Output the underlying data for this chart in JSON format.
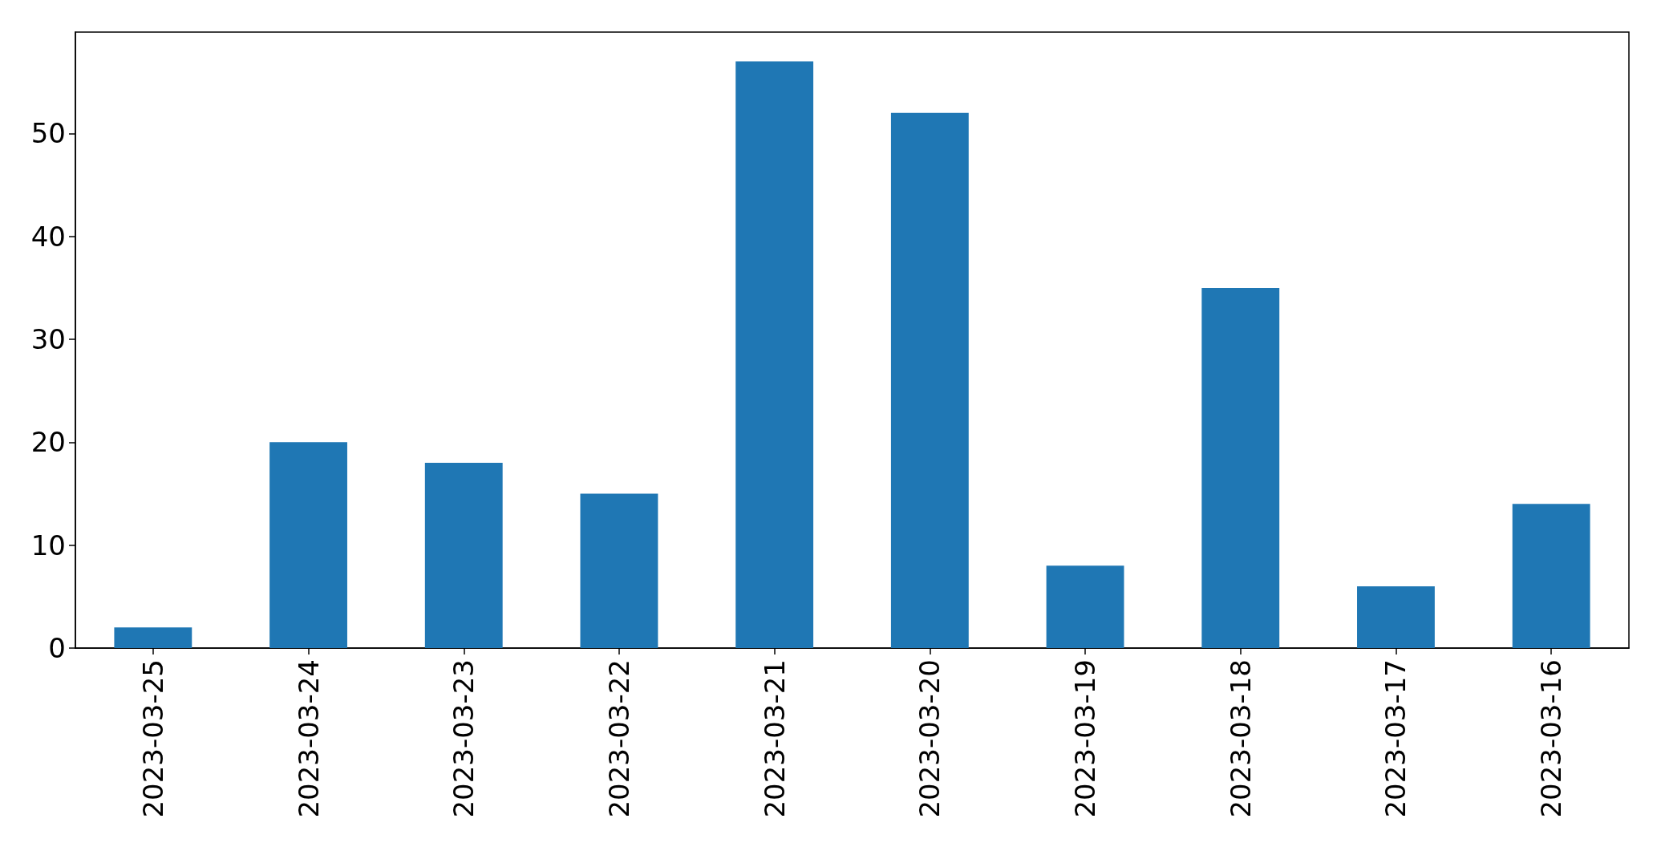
{
  "chart_data": {
    "type": "bar",
    "categories": [
      "2023-03-25",
      "2023-03-24",
      "2023-03-23",
      "2023-03-22",
      "2023-03-21",
      "2023-03-20",
      "2023-03-19",
      "2023-03-18",
      "2023-03-17",
      "2023-03-16"
    ],
    "values": [
      2,
      20,
      18,
      15,
      57,
      52,
      8,
      35,
      6,
      14
    ],
    "color": "#1f77b4",
    "ylim": [
      0,
      59.85
    ],
    "yticks": [
      0,
      10,
      20,
      30,
      40,
      50
    ],
    "grid": false
  }
}
